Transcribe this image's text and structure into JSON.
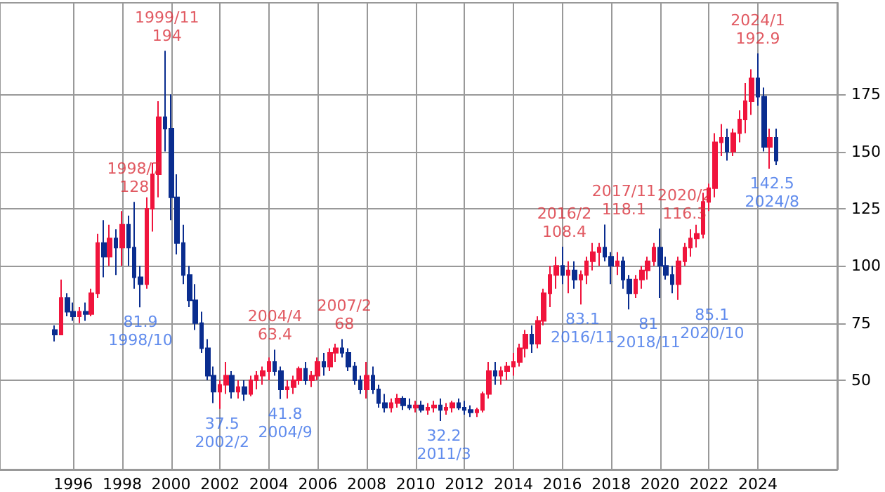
{
  "chart_data": {
    "type": "candlestick",
    "x": [
      "1995-04",
      "1995-07",
      "1995-10",
      "1996-01",
      "1996-04",
      "1996-07",
      "1996-10",
      "1997-01",
      "1997-04",
      "1997-07",
      "1997-10",
      "1998-01",
      "1998-04",
      "1998-07",
      "1998-10",
      "1999-01",
      "1999-04",
      "1999-07",
      "1999-10",
      "2000-01",
      "2000-04",
      "2000-07",
      "2000-10",
      "2001-01",
      "2001-04",
      "2001-07",
      "2001-10",
      "2002-01",
      "2002-04",
      "2002-07",
      "2002-10",
      "2003-01",
      "2003-04",
      "2003-07",
      "2003-10",
      "2004-01",
      "2004-04",
      "2004-07",
      "2004-10",
      "2005-01",
      "2005-04",
      "2005-07",
      "2005-10",
      "2006-01",
      "2006-04",
      "2006-07",
      "2006-10",
      "2007-01",
      "2007-04",
      "2007-07",
      "2007-10",
      "2008-01",
      "2008-04",
      "2008-07",
      "2008-10",
      "2009-01",
      "2009-04",
      "2009-07",
      "2009-10",
      "2010-01",
      "2010-04",
      "2010-07",
      "2010-10",
      "2011-01",
      "2011-04",
      "2011-07",
      "2011-10",
      "2012-01",
      "2012-04",
      "2012-07",
      "2012-10",
      "2013-01",
      "2013-04",
      "2013-07",
      "2013-10",
      "2014-01",
      "2014-04",
      "2014-07",
      "2014-10",
      "2015-01",
      "2015-04",
      "2015-07",
      "2015-10",
      "2016-01",
      "2016-04",
      "2016-07",
      "2016-10",
      "2017-01",
      "2017-04",
      "2017-07",
      "2017-10",
      "2018-01",
      "2018-04",
      "2018-07",
      "2018-10",
      "2019-01",
      "2019-04",
      "2019-07",
      "2019-10",
      "2020-01",
      "2020-04",
      "2020-07",
      "2020-10",
      "2021-01",
      "2021-04",
      "2021-07",
      "2021-10",
      "2022-01",
      "2022-04",
      "2022-07",
      "2022-10",
      "2023-01",
      "2023-04",
      "2023-07",
      "2023-10",
      "2024-01",
      "2024-04",
      "2024-07",
      "2024-10"
    ],
    "ohlc": [
      [
        72,
        74,
        67,
        70
      ],
      [
        70,
        94,
        70,
        86
      ],
      [
        86,
        88,
        78,
        80
      ],
      [
        80,
        84,
        76,
        78
      ],
      [
        78,
        82,
        75,
        80
      ],
      [
        80,
        84,
        76,
        79
      ],
      [
        79,
        90,
        78,
        88
      ],
      [
        88,
        114,
        86,
        110
      ],
      [
        110,
        120,
        95,
        104
      ],
      [
        104,
        118,
        100,
        112
      ],
      [
        112,
        116,
        96,
        108
      ],
      [
        108,
        124,
        100,
        118
      ],
      [
        118,
        122,
        100,
        108
      ],
      [
        108,
        128,
        90,
        95
      ],
      [
        95,
        100,
        81.9,
        92
      ],
      [
        92,
        130,
        90,
        125
      ],
      [
        125,
        145,
        115,
        140
      ],
      [
        140,
        172,
        130,
        165
      ],
      [
        165,
        194,
        150,
        160
      ],
      [
        160,
        175,
        120,
        130
      ],
      [
        130,
        140,
        105,
        110
      ],
      [
        110,
        118,
        92,
        96
      ],
      [
        96,
        100,
        82,
        85
      ],
      [
        85,
        92,
        72,
        75
      ],
      [
        75,
        80,
        62,
        64
      ],
      [
        64,
        68,
        50,
        52
      ],
      [
        52,
        56,
        40,
        45
      ],
      [
        45,
        50,
        37.5,
        48
      ],
      [
        48,
        58,
        44,
        52
      ],
      [
        52,
        54,
        42,
        45
      ],
      [
        45,
        50,
        42,
        47
      ],
      [
        47,
        50,
        41,
        44
      ],
      [
        44,
        52,
        43,
        50
      ],
      [
        50,
        54,
        46,
        52
      ],
      [
        52,
        56,
        48,
        54
      ],
      [
        54,
        60,
        50,
        58
      ],
      [
        58,
        63.4,
        52,
        54
      ],
      [
        54,
        56,
        41.8,
        46
      ],
      [
        46,
        50,
        42,
        47
      ],
      [
        47,
        52,
        44,
        50
      ],
      [
        50,
        56,
        48,
        55
      ],
      [
        55,
        58,
        48,
        50
      ],
      [
        50,
        54,
        47,
        52
      ],
      [
        52,
        60,
        50,
        58
      ],
      [
        58,
        62,
        52,
        56
      ],
      [
        56,
        64,
        54,
        62
      ],
      [
        62,
        66,
        58,
        64
      ],
      [
        64,
        68,
        60,
        62
      ],
      [
        62,
        64,
        54,
        56
      ],
      [
        56,
        58,
        48,
        50
      ],
      [
        50,
        52,
        44,
        46
      ],
      [
        46,
        58,
        42,
        52
      ],
      [
        52,
        56,
        44,
        46
      ],
      [
        46,
        48,
        38,
        40
      ],
      [
        40,
        44,
        36,
        38
      ],
      [
        38,
        42,
        36,
        40
      ],
      [
        40,
        44,
        38,
        42
      ],
      [
        42,
        43,
        37,
        39
      ],
      [
        39,
        42,
        37,
        38
      ],
      [
        38,
        41,
        36,
        39
      ],
      [
        39,
        41,
        36,
        37
      ],
      [
        37,
        40,
        35,
        38
      ],
      [
        38,
        41,
        36,
        39
      ],
      [
        39,
        42,
        32.2,
        37
      ],
      [
        37,
        40,
        35,
        38
      ],
      [
        38,
        41,
        36,
        40
      ],
      [
        40,
        42,
        37,
        38
      ],
      [
        38,
        41,
        35,
        37
      ],
      [
        37,
        39,
        34,
        36
      ],
      [
        36,
        38,
        34,
        37
      ],
      [
        37,
        45,
        36,
        44
      ],
      [
        44,
        58,
        42,
        54
      ],
      [
        54,
        58,
        48,
        52
      ],
      [
        52,
        56,
        48,
        54
      ],
      [
        54,
        58,
        50,
        56
      ],
      [
        56,
        62,
        52,
        58
      ],
      [
        58,
        66,
        56,
        64
      ],
      [
        64,
        72,
        60,
        70
      ],
      [
        70,
        74,
        62,
        66
      ],
      [
        66,
        78,
        64,
        76
      ],
      [
        76,
        90,
        74,
        88
      ],
      [
        88,
        100,
        82,
        96
      ],
      [
        96,
        104,
        90,
        100
      ],
      [
        100,
        108.4,
        92,
        96
      ],
      [
        96,
        102,
        88,
        98
      ],
      [
        98,
        102,
        90,
        94
      ],
      [
        94,
        98,
        83.1,
        96
      ],
      [
        96,
        104,
        92,
        102
      ],
      [
        102,
        110,
        98,
        106
      ],
      [
        106,
        110,
        100,
        108
      ],
      [
        108,
        118.1,
        102,
        104
      ],
      [
        104,
        106,
        92,
        100
      ],
      [
        100,
        106,
        96,
        102
      ],
      [
        102,
        104,
        90,
        94
      ],
      [
        94,
        96,
        81,
        88
      ],
      [
        88,
        96,
        86,
        94
      ],
      [
        94,
        100,
        90,
        98
      ],
      [
        98,
        104,
        94,
        102
      ],
      [
        102,
        110,
        100,
        108
      ],
      [
        108,
        116.3,
        86,
        100
      ],
      [
        100,
        104,
        94,
        96
      ],
      [
        96,
        100,
        88,
        92
      ],
      [
        92,
        104,
        85.1,
        102
      ],
      [
        102,
        110,
        100,
        108
      ],
      [
        108,
        116,
        104,
        112
      ],
      [
        112,
        118,
        108,
        114
      ],
      [
        114,
        132,
        112,
        128
      ],
      [
        128,
        136,
        124,
        134
      ],
      [
        134,
        158,
        130,
        154
      ],
      [
        154,
        162,
        148,
        156
      ],
      [
        156,
        160,
        146,
        150
      ],
      [
        150,
        160,
        148,
        158
      ],
      [
        158,
        168,
        154,
        164
      ],
      [
        164,
        180,
        158,
        172
      ],
      [
        172,
        186,
        166,
        182
      ],
      [
        182,
        192.9,
        170,
        174
      ],
      [
        174,
        178,
        150,
        152
      ],
      [
        152,
        160,
        142.5,
        156
      ],
      [
        156,
        160,
        144,
        146
      ]
    ],
    "xlim": [
      "1993-01",
      "2027-04"
    ],
    "xticks": [
      "1996",
      "1998",
      "2000",
      "2002",
      "2004",
      "2006",
      "2008",
      "2010",
      "2012",
      "2014",
      "2016",
      "2018",
      "2020",
      "2022",
      "2024"
    ],
    "ylim": [
      11,
      215
    ],
    "yticks": [
      50,
      75,
      100,
      125,
      150,
      175
    ],
    "grid": true,
    "annotations": [
      {
        "text": "1998/7\n128",
        "x": "1998-07",
        "y": 128
      },
      {
        "text": "81.9\n1998/10",
        "x": "1998-10",
        "y": 81.9
      },
      {
        "text": "1999/11\n194",
        "x": "1999-11",
        "y": 194
      },
      {
        "text": "37.5\n2002/2",
        "x": "2002-02",
        "y": 37.5
      },
      {
        "text": "2004/4\n63.4",
        "x": "2004-04",
        "y": 63.4
      },
      {
        "text": "41.8\n2004/9",
        "x": "2004-09",
        "y": 41.8
      },
      {
        "text": "2007/2\n68",
        "x": "2007-02",
        "y": 68
      },
      {
        "text": "32.2\n2011/3",
        "x": "2011-03",
        "y": 32.2
      },
      {
        "text": "2016/2\n108.4",
        "x": "2016-02",
        "y": 108.4
      },
      {
        "text": "83.1\n2016/11",
        "x": "2016-11",
        "y": 83.1
      },
      {
        "text": "2017/11\n118.1",
        "x": "2017-11",
        "y": 118.1
      },
      {
        "text": "81\n2018/11",
        "x": "2018-11",
        "y": 81
      },
      {
        "text": "2020/2\n116.3",
        "x": "2020-02",
        "y": 116.3
      },
      {
        "text": "85.1\n2020/10",
        "x": "2020-10",
        "y": 85.1
      },
      {
        "text": "2024/1\n192.9",
        "x": "2024-01",
        "y": 192.9
      },
      {
        "text": "142.5\n2024/8",
        "x": "2024-08",
        "y": 142.5
      }
    ]
  }
}
